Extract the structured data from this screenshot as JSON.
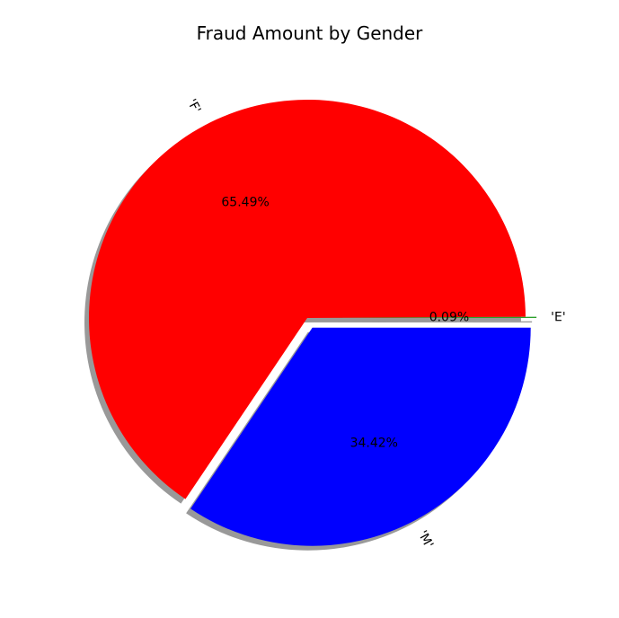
{
  "chart_data": {
    "type": "pie",
    "title": "Fraud Amount by Gender",
    "slices": [
      {
        "label": "'E'",
        "value": 0.09,
        "pct_label": "0.09%",
        "color": "#2ca02c",
        "explode": true
      },
      {
        "label": "'F'",
        "value": 65.49,
        "pct_label": "65.49%",
        "color": "#ff0000",
        "explode": false
      },
      {
        "label": "'M'",
        "value": 34.42,
        "pct_label": "34.42%",
        "color": "#0000ff",
        "explode": true
      }
    ],
    "start_angle_deg": 0,
    "counterclock": true,
    "shadow": true,
    "legend": "none"
  }
}
